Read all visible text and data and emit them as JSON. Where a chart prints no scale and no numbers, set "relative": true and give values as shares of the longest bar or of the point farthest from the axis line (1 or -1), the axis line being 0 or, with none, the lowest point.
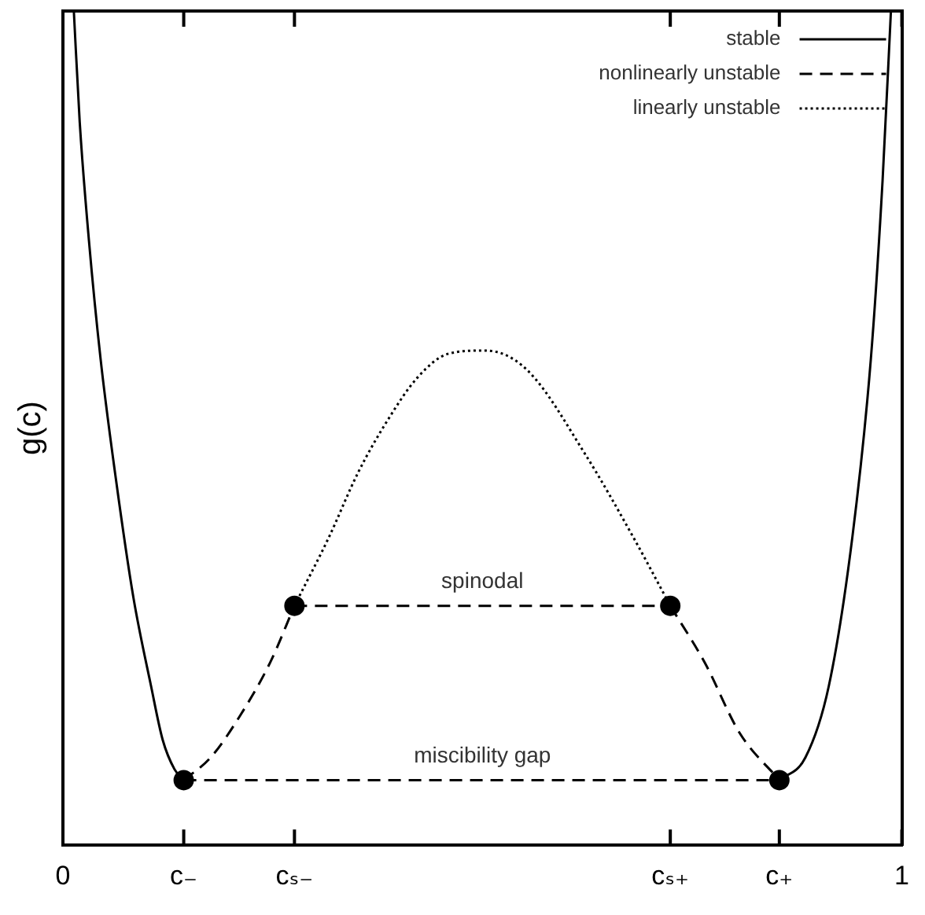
{
  "chart_data": {
    "type": "line",
    "relative": true,
    "ylabel": "g(c)",
    "legend": "top right",
    "xlim": [
      0,
      1
    ],
    "xticks": [
      0,
      {
        "value": 0.144,
        "label": "c₋"
      },
      {
        "value": 0.276,
        "label": "cₛ₋"
      },
      {
        "value": 0.724,
        "label": "cₛ₊"
      },
      {
        "value": 0.854,
        "label": "c₊"
      },
      1
    ],
    "series": [
      {
        "name": "stable",
        "color": "#000000",
        "line_style": "solid",
        "marker": "none",
        "x": [
          0.013,
          0.02,
          0.031,
          0.045,
          0.063,
          0.084,
          0.105,
          0.119,
          0.133,
          0.144,
          null,
          0.854,
          0.885,
          0.913,
          0.941,
          0.963,
          0.977,
          0.987
        ],
        "values": [
          1,
          0.867,
          0.725,
          0.582,
          0.44,
          0.297,
          0.191,
          0.126,
          0.091,
          0.078,
          null,
          0.078,
          0.105,
          0.191,
          0.369,
          0.582,
          0.796,
          1
        ]
      },
      {
        "name": "nonlinearly unstable",
        "color": "#000000",
        "line_style": "dashed",
        "marker": "none",
        "x": [
          0.144,
          0.176,
          0.211,
          0.247,
          0.276,
          null,
          0.276,
          0.724,
          null,
          0.724,
          0.765,
          0.807,
          0.854,
          null,
          0.144,
          0.854
        ],
        "values": [
          0.078,
          0.105,
          0.155,
          0.219,
          0.287,
          null,
          0.287,
          0.287,
          null,
          0.287,
          0.219,
          0.134,
          0.078,
          null,
          0.078,
          0.078
        ]
      },
      {
        "name": "linearly unstable",
        "color": "#000000",
        "line_style": "dotted",
        "marker": "none",
        "x": [
          0.276,
          0.317,
          0.352,
          0.388,
          0.423,
          0.459,
          0.503,
          0.553,
          0.623,
          0.68,
          0.724
        ],
        "values": [
          0.287,
          0.369,
          0.447,
          0.511,
          0.561,
          0.589,
          0.593,
          0.57,
          0.468,
          0.369,
          0.287
        ]
      },
      {
        "type": "scatter",
        "color": "#000000",
        "marker": "circle",
        "x": [
          0.144,
          0.276,
          0.724,
          0.854
        ],
        "values": [
          0.078,
          0.287,
          0.287,
          0.078
        ]
      }
    ],
    "annotations": [
      {
        "text": "spinodal",
        "x": 0.5,
        "y": 0.287
      },
      {
        "text": "miscibility gap",
        "x": 0.5,
        "y": 0.078
      }
    ]
  }
}
